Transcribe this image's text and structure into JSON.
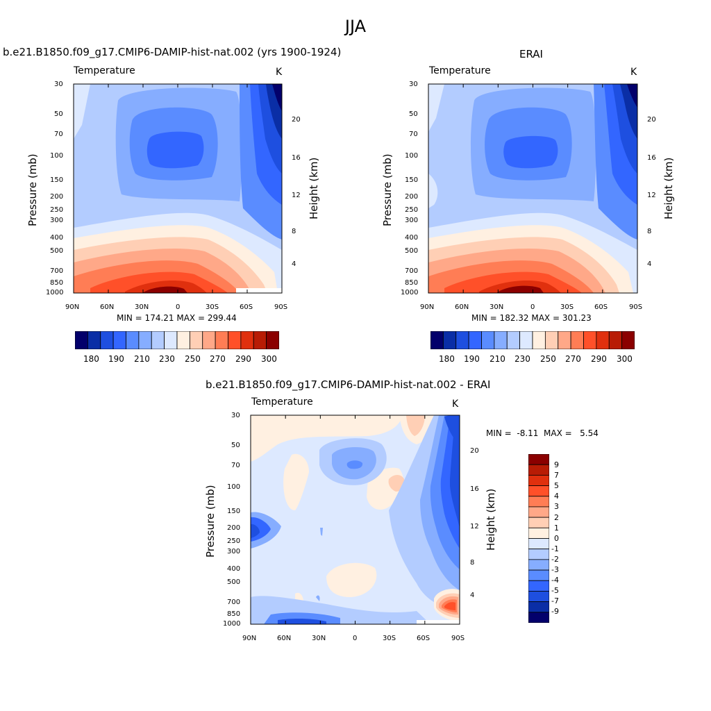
{
  "figure_title": "JJA",
  "panels": [
    {
      "title": "b.e21.B1850.f09_g17.CMIP6-DAMIP-hist-nat.002 (yrs 1900-1924)",
      "subtitle_left": "Temperature",
      "subtitle_right": "K",
      "stats": "MIN = 174.21  MAX = 299.44"
    },
    {
      "title": "ERAI",
      "subtitle_left": "Temperature",
      "subtitle_right": "K",
      "stats": "MIN = 182.32  MAX = 301.23"
    },
    {
      "title": "b.e21.B1850.f09_g17.CMIP6-DAMIP-hist-nat.002 - ERAI",
      "subtitle_left": "Temperature",
      "subtitle_right": "K",
      "stats": "MIN =  -8.11  MAX =   5.54"
    }
  ],
  "axes": {
    "ylabel_left": "Pressure (mb)",
    "ylabel_right": "Height (km)",
    "pressure_ticks": [
      "30",
      "50",
      "70",
      "100",
      "150",
      "200",
      "250",
      "300",
      "400",
      "500",
      "700",
      "850",
      "1000"
    ],
    "height_ticks": [
      "20",
      "16",
      "12",
      "8",
      "4"
    ],
    "lat_ticks": [
      "90N",
      "60N",
      "30N",
      "0",
      "30S",
      "60S",
      "90S"
    ]
  },
  "colorbar_abs": {
    "colors": [
      "#03006b",
      "#0a2ea6",
      "#1e4fe0",
      "#3366ff",
      "#5a8cff",
      "#86adff",
      "#b3ccff",
      "#dde9ff",
      "#fff0e1",
      "#ffcfb5",
      "#ffa888",
      "#ff7d55",
      "#ff5029",
      "#e0300e",
      "#b81c05",
      "#8b0000"
    ],
    "labels": [
      "180",
      "190",
      "210",
      "230",
      "250",
      "270",
      "290",
      "300"
    ]
  },
  "colorbar_diff": {
    "colors": [
      "#03006b",
      "#0a2ea6",
      "#1e4fe0",
      "#3366ff",
      "#5a8cff",
      "#86adff",
      "#b3ccff",
      "#dde9ff",
      "#fff0e1",
      "#ffcfb5",
      "#ffa888",
      "#ff7d55",
      "#ff5029",
      "#e0300e",
      "#b81c05",
      "#8b0000"
    ],
    "labels": [
      "9",
      "7",
      "5",
      "4",
      "3",
      "2",
      "1",
      "0",
      "-1",
      "-2",
      "-3",
      "-4",
      "-5",
      "-7",
      "-9"
    ]
  },
  "chart_data": [
    {
      "type": "heatmap",
      "title": "b.e21.B1850.f09_g17.CMIP6-DAMIP-hist-nat.002 (yrs 1900-1924)",
      "xlabel": "",
      "ylabel": "Pressure (mb)",
      "ylabel_right": "Height (km)",
      "x": [
        "90N",
        "60N",
        "30N",
        "0",
        "30S",
        "60S",
        "90S"
      ],
      "y": [
        30,
        50,
        70,
        100,
        150,
        200,
        250,
        300,
        400,
        500,
        700,
        850,
        1000
      ],
      "ylog": true,
      "yreversed": true,
      "min": 174.21,
      "max": 299.44,
      "colorbar_levels": [
        180,
        185,
        190,
        200,
        210,
        220,
        230,
        240,
        250,
        260,
        270,
        280,
        290,
        295,
        300
      ]
    },
    {
      "type": "heatmap",
      "title": "ERAI",
      "xlabel": "",
      "ylabel": "Pressure (mb)",
      "ylabel_right": "Height (km)",
      "x": [
        "90N",
        "60N",
        "30N",
        "0",
        "30S",
        "60S",
        "90S"
      ],
      "y": [
        30,
        50,
        70,
        100,
        150,
        200,
        250,
        300,
        400,
        500,
        700,
        850,
        1000
      ],
      "ylog": true,
      "yreversed": true,
      "min": 182.32,
      "max": 301.23,
      "colorbar_levels": [
        180,
        185,
        190,
        200,
        210,
        220,
        230,
        240,
        250,
        260,
        270,
        280,
        290,
        295,
        300
      ]
    },
    {
      "type": "heatmap",
      "title": "b.e21.B1850.f09_g17.CMIP6-DAMIP-hist-nat.002 - ERAI",
      "xlabel": "",
      "ylabel": "Pressure (mb)",
      "ylabel_right": "Height (km)",
      "x": [
        "90N",
        "60N",
        "30N",
        "0",
        "30S",
        "60S",
        "90S"
      ],
      "y": [
        30,
        50,
        70,
        100,
        150,
        200,
        250,
        300,
        400,
        500,
        700,
        850,
        1000
      ],
      "ylog": true,
      "yreversed": true,
      "min": -8.11,
      "max": 5.54,
      "colorbar_levels": [
        -9,
        -7,
        -5,
        -4,
        -3,
        -2,
        -1,
        0,
        1,
        2,
        3,
        4,
        5,
        7,
        9
      ]
    }
  ]
}
